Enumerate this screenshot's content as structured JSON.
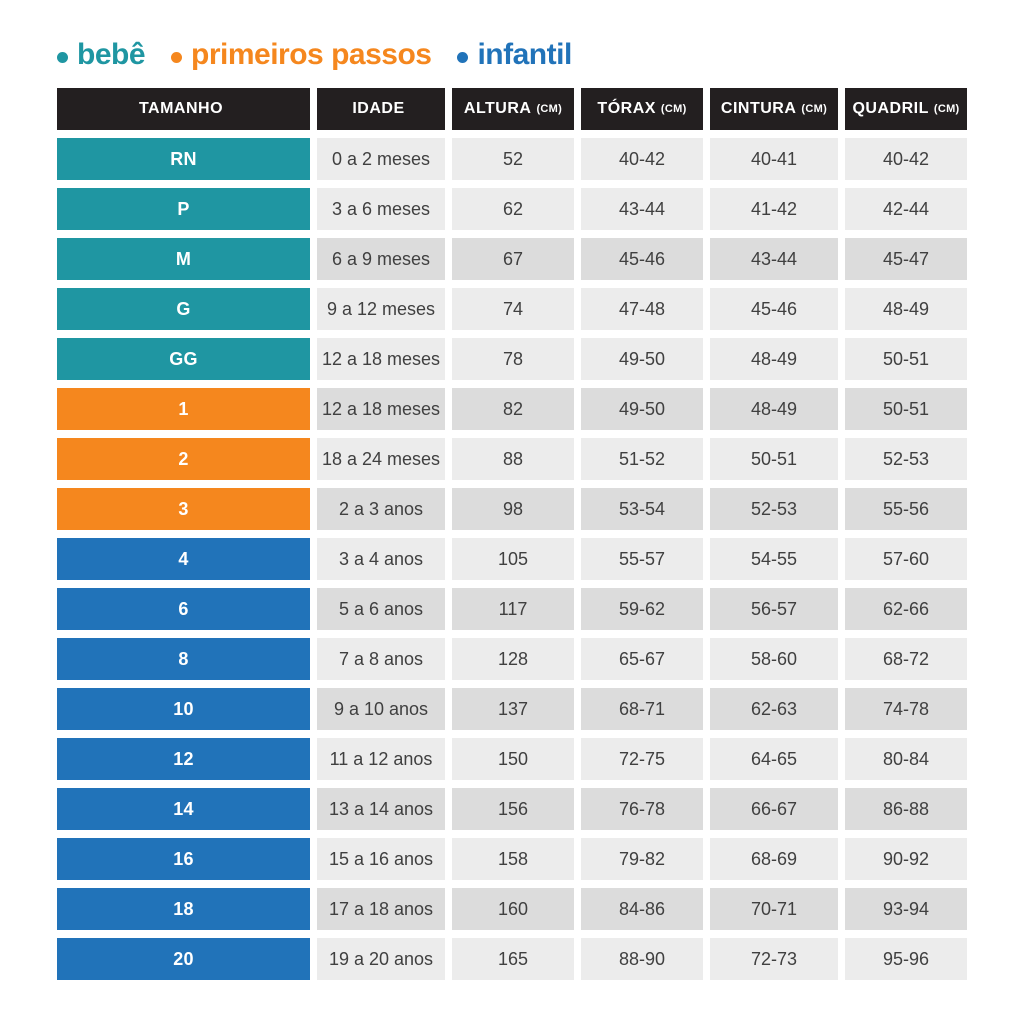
{
  "legend": {
    "items": [
      {
        "label": "bebê",
        "color": "#1f96a2"
      },
      {
        "label": "primeiros passos",
        "color": "#f5871e"
      },
      {
        "label": "infantil",
        "color": "#2173b9"
      }
    ]
  },
  "colors": {
    "bebe": "#1f96a2",
    "primeiros-passos": "#f5871e",
    "infantil": "#2173b9",
    "header_bg": "#231f20",
    "row_light": "#ececec",
    "row_dark": "#dcdcdc",
    "cell_text": "#404040"
  },
  "chart_data": {
    "type": "table",
    "legend": [
      "bebê",
      "primeiros passos",
      "infantil"
    ],
    "columns": [
      {
        "label": "TAMANHO",
        "unit": ""
      },
      {
        "label": "IDADE",
        "unit": ""
      },
      {
        "label": "ALTURA",
        "unit": "(CM)"
      },
      {
        "label": "TÓRAX",
        "unit": "(CM)"
      },
      {
        "label": "CINTURA",
        "unit": "(CM)"
      },
      {
        "label": "QUADRIL",
        "unit": "(CM)"
      }
    ],
    "rows": [
      {
        "size": "RN",
        "category": "bebe",
        "idade": "0 a 2 meses",
        "altura": "52",
        "torax": "40-42",
        "cintura": "40-41",
        "quadril": "40-42",
        "shaded": false
      },
      {
        "size": "P",
        "category": "bebe",
        "idade": "3 a 6 meses",
        "altura": "62",
        "torax": "43-44",
        "cintura": "41-42",
        "quadril": "42-44",
        "shaded": false
      },
      {
        "size": "M",
        "category": "bebe",
        "idade": "6 a 9 meses",
        "altura": "67",
        "torax": "45-46",
        "cintura": "43-44",
        "quadril": "45-47",
        "shaded": true
      },
      {
        "size": "G",
        "category": "bebe",
        "idade": "9 a 12 meses",
        "altura": "74",
        "torax": "47-48",
        "cintura": "45-46",
        "quadril": "48-49",
        "shaded": false
      },
      {
        "size": "GG",
        "category": "bebe",
        "idade": "12 a 18 meses",
        "altura": "78",
        "torax": "49-50",
        "cintura": "48-49",
        "quadril": "50-51",
        "shaded": false
      },
      {
        "size": "1",
        "category": "primeiros-passos",
        "idade": "12 a 18 meses",
        "altura": "82",
        "torax": "49-50",
        "cintura": "48-49",
        "quadril": "50-51",
        "shaded": true
      },
      {
        "size": "2",
        "category": "primeiros-passos",
        "idade": "18 a 24 meses",
        "altura": "88",
        "torax": "51-52",
        "cintura": "50-51",
        "quadril": "52-53",
        "shaded": false
      },
      {
        "size": "3",
        "category": "primeiros-passos",
        "idade": "2 a 3 anos",
        "altura": "98",
        "torax": "53-54",
        "cintura": "52-53",
        "quadril": "55-56",
        "shaded": true
      },
      {
        "size": "4",
        "category": "infantil",
        "idade": "3 a 4 anos",
        "altura": "105",
        "torax": "55-57",
        "cintura": "54-55",
        "quadril": "57-60",
        "shaded": false
      },
      {
        "size": "6",
        "category": "infantil",
        "idade": "5 a 6 anos",
        "altura": "117",
        "torax": "59-62",
        "cintura": "56-57",
        "quadril": "62-66",
        "shaded": true
      },
      {
        "size": "8",
        "category": "infantil",
        "idade": "7 a 8 anos",
        "altura": "128",
        "torax": "65-67",
        "cintura": "58-60",
        "quadril": "68-72",
        "shaded": false
      },
      {
        "size": "10",
        "category": "infantil",
        "idade": "9 a 10 anos",
        "altura": "137",
        "torax": "68-71",
        "cintura": "62-63",
        "quadril": "74-78",
        "shaded": true
      },
      {
        "size": "12",
        "category": "infantil",
        "idade": "11 a 12 anos",
        "altura": "150",
        "torax": "72-75",
        "cintura": "64-65",
        "quadril": "80-84",
        "shaded": false
      },
      {
        "size": "14",
        "category": "infantil",
        "idade": "13 a 14 anos",
        "altura": "156",
        "torax": "76-78",
        "cintura": "66-67",
        "quadril": "86-88",
        "shaded": true
      },
      {
        "size": "16",
        "category": "infantil",
        "idade": "15 a 16 anos",
        "altura": "158",
        "torax": "79-82",
        "cintura": "68-69",
        "quadril": "90-92",
        "shaded": false
      },
      {
        "size": "18",
        "category": "infantil",
        "idade": "17 a 18 anos",
        "altura": "160",
        "torax": "84-86",
        "cintura": "70-71",
        "quadril": "93-94",
        "shaded": true
      },
      {
        "size": "20",
        "category": "infantil",
        "idade": "19 a 20 anos",
        "altura": "165",
        "torax": "88-90",
        "cintura": "72-73",
        "quadril": "95-96",
        "shaded": false
      }
    ]
  }
}
